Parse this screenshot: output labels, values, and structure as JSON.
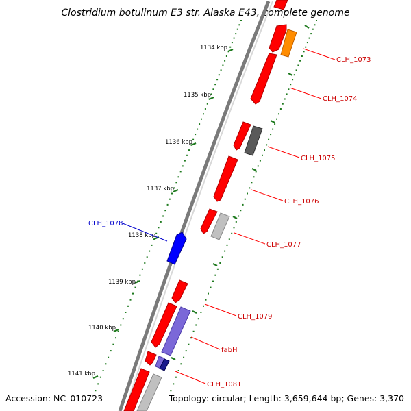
{
  "title": "Clostridium botulinum E3 str. Alaska E43, complete genome",
  "footer": {
    "accession": "Accession: NC_010723",
    "topology": "Topology: circular; Length: 3,659,644 bp; Genes: 3,370"
  },
  "colors": {
    "backbone": "#7a7a7a",
    "ticks": "#1f7a1f",
    "gene_red": "#ff0000",
    "gene_orange": "#ff8c00",
    "gene_gray": "#5a5a5a",
    "gene_lightgray": "#c0c0c0",
    "gene_blue": "#0000ff",
    "gene_lavender": "#7b68d8",
    "gene_navy": "#1a1a8c",
    "label_red": "#cc0000",
    "label_blue": "#0000cc"
  },
  "ticks": [
    {
      "label": "1134 kbp"
    },
    {
      "label": "1135 kbp"
    },
    {
      "label": "1136 kbp"
    },
    {
      "label": "1137 kbp"
    },
    {
      "label": "1138 kbp"
    },
    {
      "label": "1139 kbp"
    },
    {
      "label": "1140 kbp"
    },
    {
      "label": "1141 kbp"
    }
  ],
  "gene_labels": [
    {
      "text": "CLH_1073",
      "side": "right"
    },
    {
      "text": "CLH_1074",
      "side": "right"
    },
    {
      "text": "CLH_1075",
      "side": "right"
    },
    {
      "text": "CLH_1076",
      "side": "right"
    },
    {
      "text": "CLH_1077",
      "side": "right"
    },
    {
      "text": "CLH_1078",
      "side": "left"
    },
    {
      "text": "CLH_1079",
      "side": "right"
    },
    {
      "text": "fabH",
      "side": "right"
    },
    {
      "text": "CLH_1081",
      "side": "right"
    }
  ]
}
